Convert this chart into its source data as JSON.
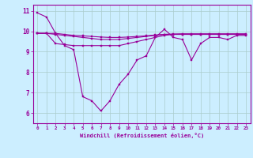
{
  "xlabel": "Windchill (Refroidissement éolien,°C)",
  "x": [
    0,
    1,
    2,
    3,
    4,
    5,
    6,
    7,
    8,
    9,
    10,
    11,
    12,
    13,
    14,
    15,
    16,
    17,
    18,
    19,
    20,
    21,
    22,
    23
  ],
  "line1": [
    10.9,
    10.7,
    9.9,
    9.3,
    9.1,
    6.8,
    6.6,
    6.1,
    6.6,
    7.4,
    7.9,
    8.6,
    8.8,
    9.7,
    10.1,
    9.7,
    9.6,
    8.6,
    9.4,
    9.7,
    9.7,
    9.6,
    9.8,
    9.8
  ],
  "line2": [
    9.9,
    9.9,
    9.85,
    9.8,
    9.75,
    9.7,
    9.65,
    9.6,
    9.6,
    9.6,
    9.65,
    9.7,
    9.75,
    9.8,
    9.85,
    9.85,
    9.85,
    9.85,
    9.85,
    9.85,
    9.85,
    9.85,
    9.85,
    9.85
  ],
  "line3": [
    9.9,
    9.9,
    9.9,
    9.85,
    9.8,
    9.78,
    9.75,
    9.72,
    9.7,
    9.7,
    9.72,
    9.75,
    9.78,
    9.82,
    9.85,
    9.87,
    9.88,
    9.88,
    9.88,
    9.88,
    9.88,
    9.88,
    9.88,
    9.88
  ],
  "line4": [
    9.9,
    9.9,
    9.4,
    9.35,
    9.3,
    9.3,
    9.3,
    9.3,
    9.3,
    9.3,
    9.4,
    9.5,
    9.6,
    9.7,
    9.8,
    9.85,
    9.85,
    9.85,
    9.85,
    9.85,
    9.85,
    9.85,
    9.85,
    9.85
  ],
  "line_color": "#990099",
  "bg_color": "#cceeff",
  "grid_color": "#aacccc",
  "ylim": [
    5.5,
    11.3
  ],
  "xlim": [
    -0.5,
    23.5
  ],
  "yticks": [
    6,
    7,
    8,
    9,
    10,
    11
  ],
  "xtick_labels": [
    "0",
    "1",
    "2",
    "3",
    "4",
    "5",
    "6",
    "7",
    "8",
    "9",
    "10",
    "11",
    "12",
    "13",
    "14",
    "15",
    "16",
    "17",
    "18",
    "19",
    "20",
    "21",
    "22",
    "23"
  ]
}
